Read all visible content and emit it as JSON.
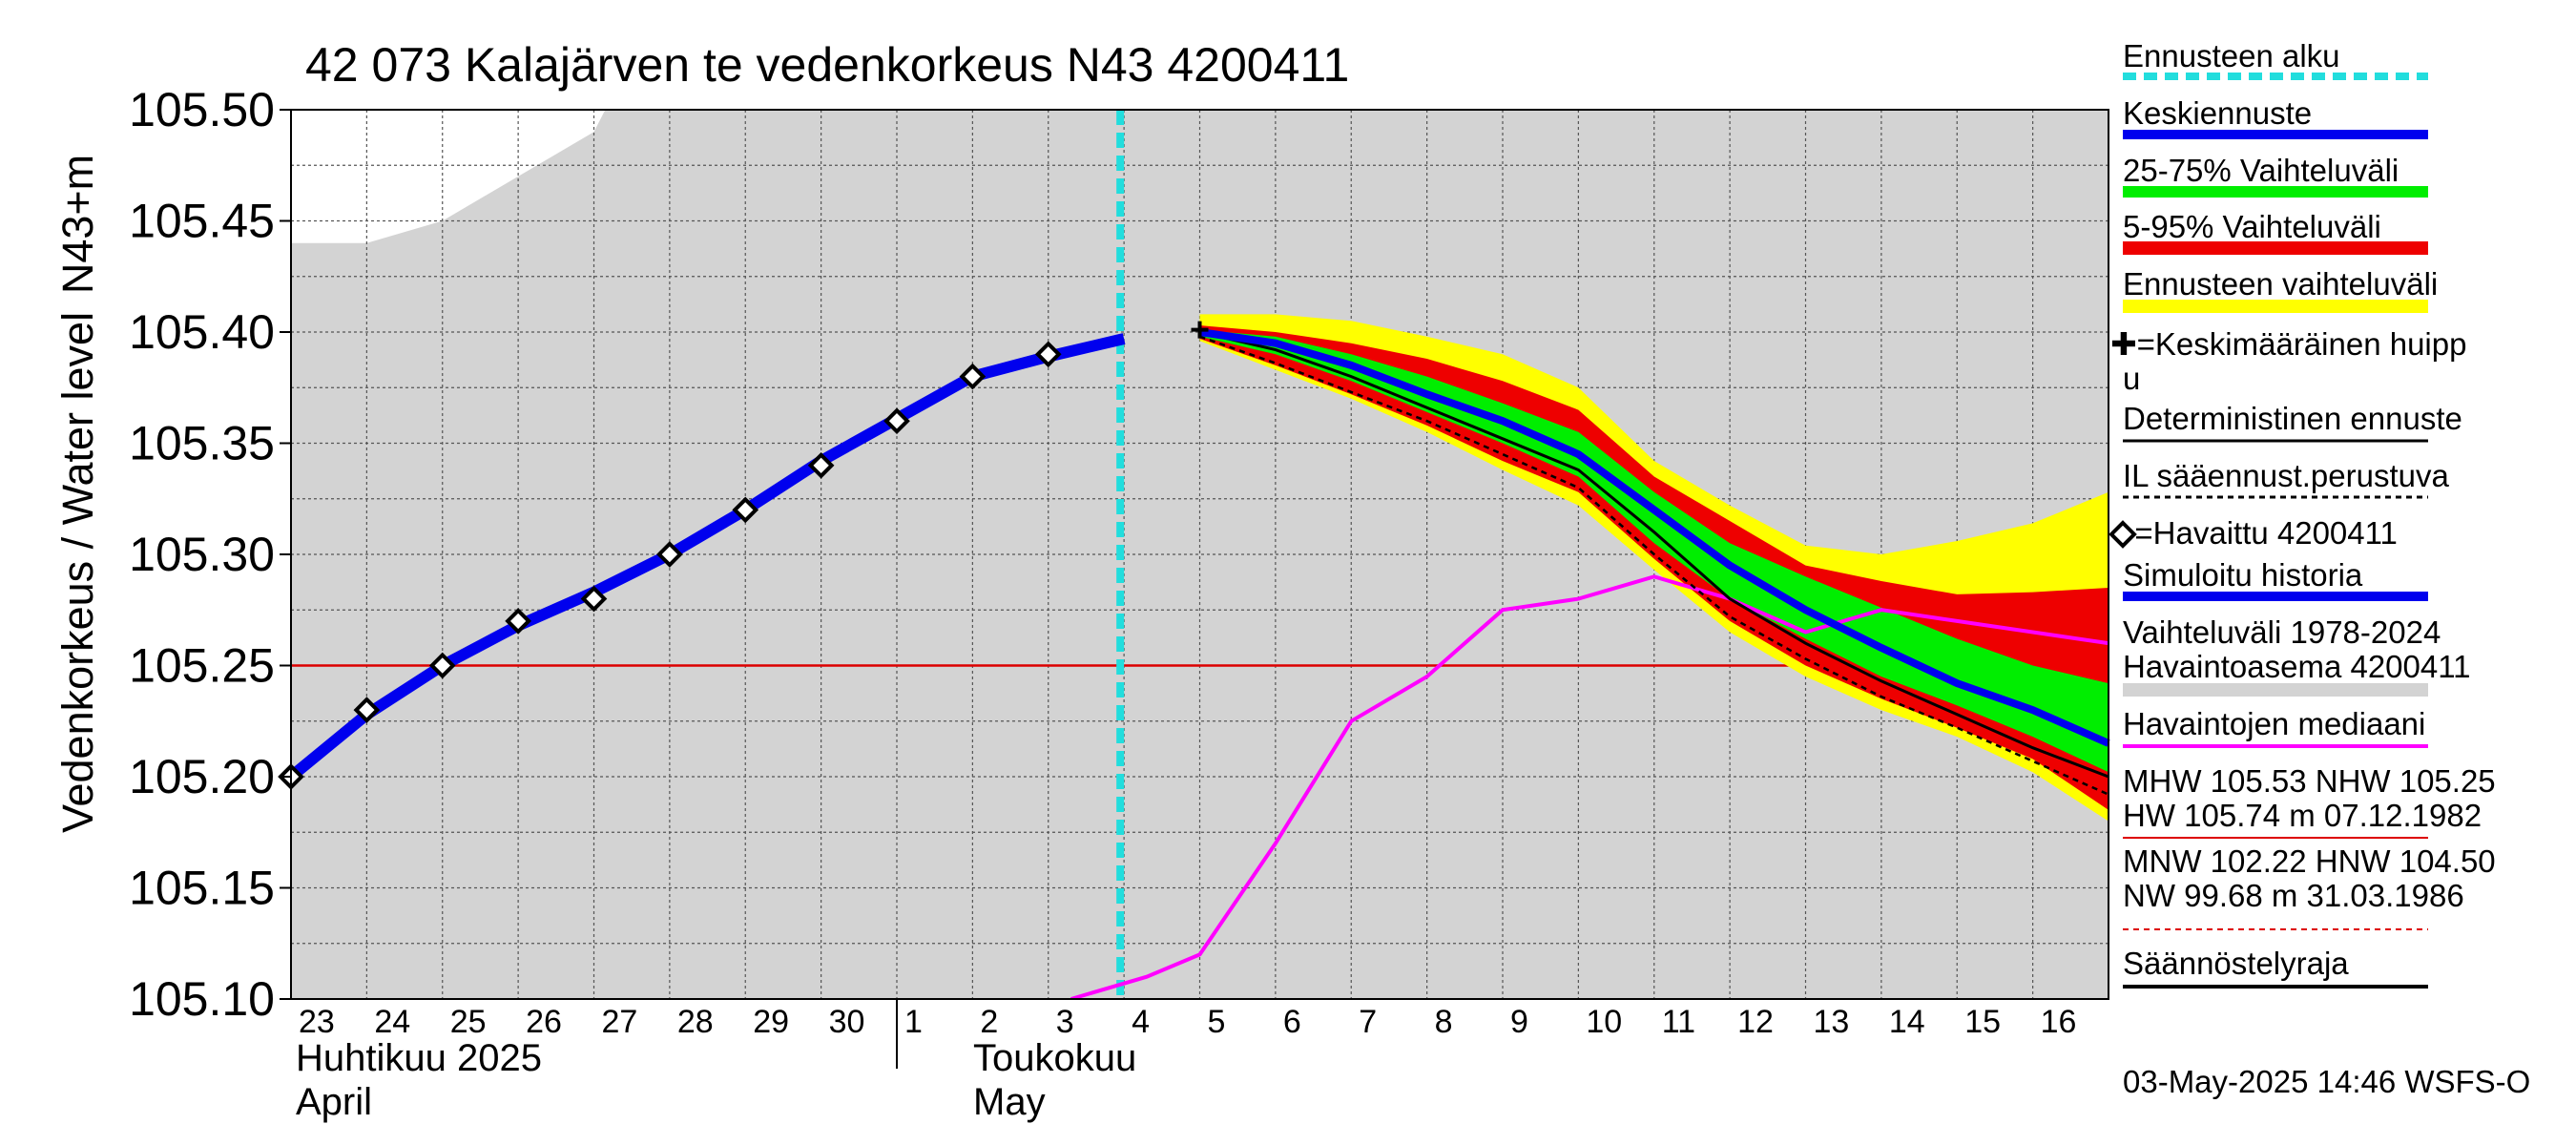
{
  "chart_data": {
    "type": "line",
    "title": "42 073 Kalajärven te vedenkorkeus N43 4200411",
    "ylabel": "Vedenkorkeus / Water level",
    "yunit": "N43+m",
    "ylim": [
      105.1,
      105.5
    ],
    "yticks": [
      "105.10",
      "105.15",
      "105.20",
      "105.25",
      "105.30",
      "105.35",
      "105.40",
      "105.45",
      "105.50"
    ],
    "x_start_day": 23,
    "x_days": 24,
    "xtick_labels": [
      "23",
      "24",
      "25",
      "26",
      "27",
      "28",
      "29",
      "30",
      "1",
      "2",
      "3",
      "4",
      "5",
      "6",
      "7",
      "8",
      "9",
      "10",
      "11",
      "12",
      "13",
      "14",
      "15",
      "16"
    ],
    "month_labels": [
      {
        "fi": "Huhtikuu  2025",
        "en": "April",
        "day_index": 0
      },
      {
        "fi": "Toukokuu",
        "en": "May",
        "day_index": 9
      }
    ],
    "forecast_start_day": 10.95,
    "threshold_level": 105.25,
    "observed": {
      "name": "Havaittu 4200411",
      "x": [
        0,
        1,
        2,
        3,
        4,
        5,
        6,
        7,
        8,
        9,
        10
      ],
      "y": [
        105.2,
        105.23,
        105.25,
        105.27,
        105.28,
        105.3,
        105.32,
        105.34,
        105.36,
        105.38,
        105.39
      ]
    },
    "simulated_history": {
      "x": [
        0,
        1,
        2,
        3,
        4,
        5,
        6,
        7,
        8,
        9,
        10,
        11
      ],
      "y": [
        105.2,
        105.228,
        105.25,
        105.268,
        105.283,
        105.3,
        105.32,
        105.342,
        105.361,
        105.38,
        105.389,
        105.397
      ]
    },
    "forecast_x": [
      12,
      13,
      14,
      15,
      16,
      17,
      18,
      19,
      20,
      21,
      22,
      23,
      24
    ],
    "mean_forecast": [
      105.4,
      105.395,
      105.385,
      105.372,
      105.36,
      105.345,
      105.32,
      105.295,
      105.275,
      105.258,
      105.242,
      105.23,
      105.215
    ],
    "band_25_75": {
      "low": [
        105.398,
        105.39,
        105.378,
        105.364,
        105.35,
        105.335,
        105.305,
        105.28,
        105.262,
        105.245,
        105.232,
        105.218,
        105.202
      ],
      "high": [
        105.401,
        105.398,
        105.39,
        105.38,
        105.368,
        105.355,
        105.328,
        105.305,
        105.29,
        105.276,
        105.262,
        105.25,
        105.242
      ]
    },
    "band_5_95": {
      "low": [
        105.397,
        105.385,
        105.372,
        105.358,
        105.342,
        105.328,
        105.298,
        105.27,
        105.25,
        105.235,
        105.222,
        105.208,
        105.185
      ],
      "high": [
        105.403,
        105.4,
        105.395,
        105.388,
        105.378,
        105.365,
        105.335,
        105.315,
        105.295,
        105.288,
        105.282,
        105.283,
        105.285
      ]
    },
    "forecast_range": {
      "low": [
        105.396,
        105.383,
        105.37,
        105.355,
        105.338,
        105.322,
        105.293,
        105.265,
        105.245,
        105.23,
        105.218,
        105.202,
        105.18
      ],
      "high": [
        105.408,
        105.408,
        105.405,
        105.398,
        105.39,
        105.375,
        105.342,
        105.322,
        105.304,
        105.3,
        105.306,
        105.314,
        105.328
      ]
    },
    "deterministic": [
      105.4,
      105.392,
      105.38,
      105.366,
      105.352,
      105.338,
      105.31,
      105.28,
      105.26,
      105.243,
      105.228,
      105.213,
      105.2
    ],
    "il_forecast": [
      105.398,
      105.386,
      105.373,
      105.36,
      105.345,
      105.33,
      105.3,
      105.272,
      105.253,
      105.236,
      105.222,
      105.207,
      105.192
    ],
    "mean_peak": {
      "x": 12,
      "y": 105.401
    },
    "median": {
      "name": "Havaintojen mediaani",
      "x": [
        10.3,
        11.3,
        12,
        13,
        14,
        15,
        16,
        17,
        18,
        19,
        20,
        21,
        22,
        23,
        24
      ],
      "y": [
        105.1,
        105.11,
        105.12,
        105.17,
        105.225,
        105.245,
        105.275,
        105.28,
        105.29,
        105.28,
        105.265,
        105.275,
        105.27,
        105.265,
        105.26
      ]
    },
    "history_range_upper": {
      "x": [
        0,
        1,
        2,
        3,
        4,
        4.15
      ],
      "y": [
        105.44,
        105.44,
        105.45,
        105.47,
        105.49,
        105.5
      ]
    }
  },
  "legend": {
    "forecast_start": "Ennusteen alku",
    "mean_forecast": "Keskiennuste",
    "band_25_75": "25-75% Vaihteluväli",
    "band_5_95": "5-95% Vaihteluväli",
    "forecast_range": "Ennusteen vaihteluväli",
    "mean_peak_line1": "✚=Keskimääräinen huipp",
    "mean_peak_line2": "u",
    "deterministic": "Deterministinen ennuste",
    "il_forecast": "IL sääennust.perustuva",
    "observed": "◇=Havaittu 4200411",
    "simulated": "Simuloitu historia",
    "history_range_line1": "Vaihteluväli 1978-2024",
    "history_range_line2": " Havaintoasema 4200411",
    "median": "Havaintojen mediaani",
    "stats_high_1": "MHW 105.53 NHW 105.25",
    "stats_high_2": "HW 105.74 m 07.12.1982",
    "stats_low_1": "MNW 102.22 HNW 104.50",
    "stats_low_2": "NW  99.68 m 31.03.1986",
    "regulation": "Säännöstelyraja"
  },
  "footer_timestamp": "03-May-2025 14:46 WSFS-O",
  "colors": {
    "forecast_start": "#22dddd",
    "mean_forecast": "#0000ee",
    "band_25_75": "#00ee00",
    "band_5_95": "#ee0000",
    "forecast_range": "#ffff00",
    "history_range": "#d3d3d3",
    "median": "#ff00ff",
    "threshold": "#dd0000",
    "simulated": "#0000ee",
    "grid": "#555555"
  }
}
